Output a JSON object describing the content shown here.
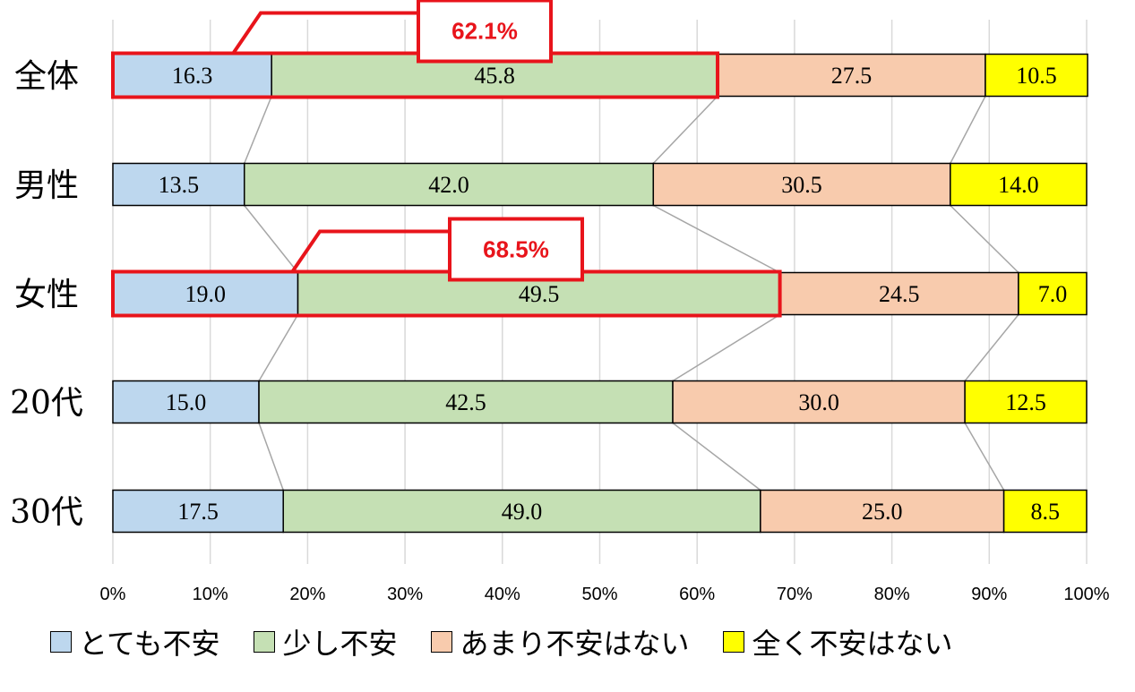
{
  "chart_data": {
    "type": "bar",
    "stacked": true,
    "orientation": "horizontal",
    "categories": [
      "全体",
      "男性",
      "女性",
      "20代",
      "30代"
    ],
    "series": [
      {
        "name": "とても不安",
        "color": "#bdd7ee",
        "values": [
          16.3,
          13.5,
          19.0,
          15.0,
          17.5
        ]
      },
      {
        "name": "少し不安",
        "color": "#c5e0b4",
        "values": [
          45.8,
          42.0,
          49.5,
          42.5,
          49.0
        ]
      },
      {
        "name": "あまり不安はない",
        "color": "#f8cbad",
        "values": [
          27.5,
          30.5,
          24.5,
          30.0,
          25.0
        ]
      },
      {
        "name": "全く不安はない",
        "color": "#ffff00",
        "values": [
          10.5,
          14.0,
          7.0,
          12.5,
          8.5
        ]
      }
    ],
    "x_ticks": [
      "0%",
      "10%",
      "20%",
      "30%",
      "40%",
      "50%",
      "60%",
      "70%",
      "80%",
      "90%",
      "100%"
    ],
    "xlim": [
      0,
      100
    ],
    "grid": true,
    "legend_position": "bottom",
    "callouts": [
      {
        "category": "全体",
        "label": "62.1%",
        "value": 62.1
      },
      {
        "category": "女性",
        "label": "68.5%",
        "value": 68.5
      }
    ],
    "highlight_color": "#e8141b"
  }
}
